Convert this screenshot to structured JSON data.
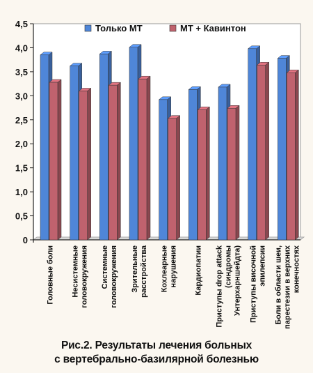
{
  "chart_data": {
    "type": "bar",
    "title": "",
    "xlabel": "",
    "ylabel": "",
    "ylim": [
      0,
      4.5
    ],
    "yticks": [
      "0",
      "0,5",
      "1,0",
      "1,5",
      "2,0",
      "2,5",
      "3,0",
      "3,5",
      "4,0",
      "4,5"
    ],
    "grid": false,
    "legend_position": "top",
    "categories": [
      [
        "Головные боли"
      ],
      [
        "Несистемные",
        "головокружения"
      ],
      [
        "Системные",
        "головокружения"
      ],
      [
        "Зрительные",
        "расстройства"
      ],
      [
        "Кохлеарные",
        "нарушения"
      ],
      [
        "Кардиопатии"
      ],
      [
        "Приступы drop attack",
        "(синдромы",
        "Унтерхарншейдта)"
      ],
      [
        "Приступы височной",
        "эпилепсии"
      ],
      [
        "Боли в области шеи,",
        "парестезии в верхних",
        "конечностях"
      ]
    ],
    "series": [
      {
        "name": "Только МТ",
        "color": "#4f86d8",
        "values": [
          3.85,
          3.62,
          3.87,
          4.01,
          2.92,
          3.13,
          3.18,
          3.98,
          3.78
        ]
      },
      {
        "name": "МТ + Кавинтон",
        "color": "#c0626e",
        "values": [
          3.28,
          3.1,
          3.22,
          3.35,
          2.53,
          2.71,
          2.74,
          3.64,
          3.48
        ]
      }
    ]
  },
  "caption": {
    "line1": "Рис.2. Результаты лечения больных",
    "line2": "с вертебрально-базилярной болезнью"
  }
}
